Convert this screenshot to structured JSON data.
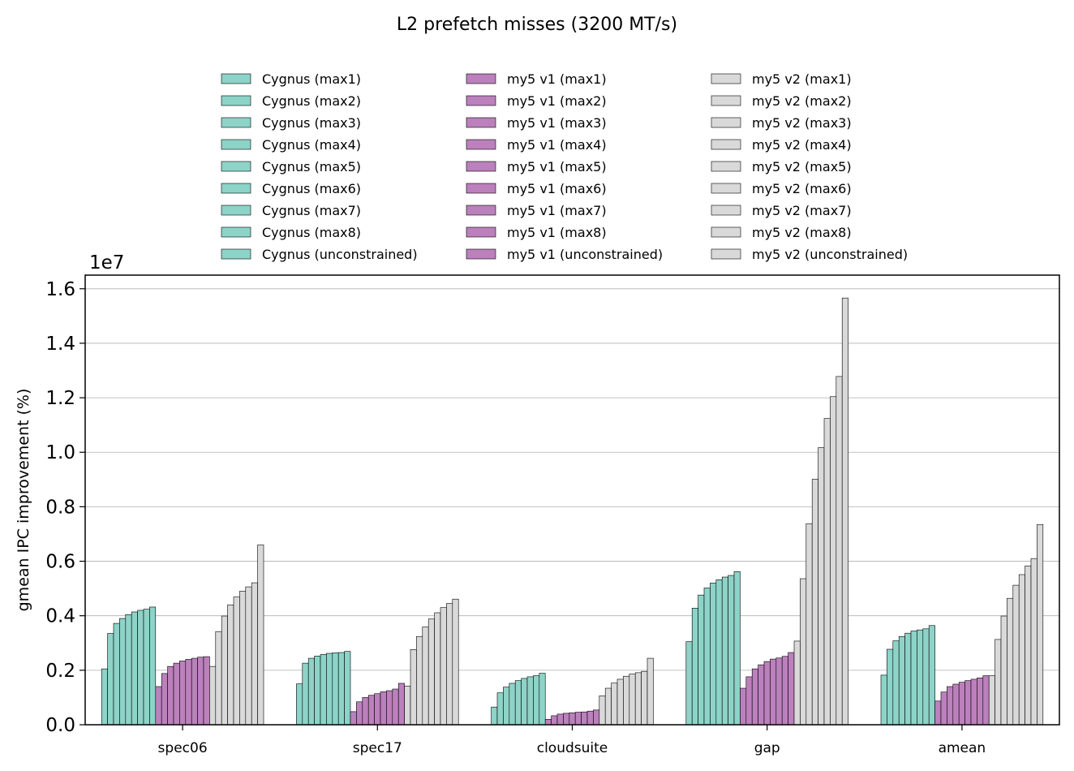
{
  "chart_data": {
    "type": "bar",
    "title": "L2 prefetch misses (3200 MT/s)",
    "xlabel": "",
    "ylabel": "gmean IPC improvement (%)",
    "scale_label": "1e7",
    "categories": [
      "spec06",
      "spec17",
      "cloudsuite",
      "gap",
      "amean"
    ],
    "ylim": [
      0,
      16500000
    ],
    "yticks": [
      0,
      2000000,
      4000000,
      6000000,
      8000000,
      10000000,
      12000000,
      14000000,
      16000000
    ],
    "ytick_labels": [
      "0.0",
      "0.2",
      "0.4",
      "0.6",
      "0.8",
      "1.0",
      "1.2",
      "1.4",
      "1.6"
    ],
    "grid": "y",
    "legend_placement": "top-center",
    "colors": {
      "Cygnus": "#8dd3c7",
      "my5 v1": "#bc80bd",
      "my5 v2": "#d9d9d9"
    },
    "series": [
      {
        "name": "Cygnus (max1)",
        "group": "Cygnus",
        "values": [
          2050000,
          1500000,
          650000,
          3050000,
          1820000
        ]
      },
      {
        "name": "Cygnus (max2)",
        "group": "Cygnus",
        "values": [
          3350000,
          2260000,
          1170000,
          4280000,
          2770000
        ]
      },
      {
        "name": "Cygnus (max3)",
        "group": "Cygnus",
        "values": [
          3720000,
          2440000,
          1380000,
          4760000,
          3080000
        ]
      },
      {
        "name": "Cygnus (max4)",
        "group": "Cygnus",
        "values": [
          3900000,
          2520000,
          1520000,
          5020000,
          3240000
        ]
      },
      {
        "name": "Cygnus (max5)",
        "group": "Cygnus",
        "values": [
          4040000,
          2580000,
          1620000,
          5200000,
          3360000
        ]
      },
      {
        "name": "Cygnus (max6)",
        "group": "Cygnus",
        "values": [
          4140000,
          2620000,
          1700000,
          5320000,
          3440000
        ]
      },
      {
        "name": "Cygnus (max7)",
        "group": "Cygnus",
        "values": [
          4200000,
          2640000,
          1760000,
          5420000,
          3480000
        ]
      },
      {
        "name": "Cygnus (max8)",
        "group": "Cygnus",
        "values": [
          4240000,
          2650000,
          1800000,
          5480000,
          3520000
        ]
      },
      {
        "name": "Cygnus (unconstrained)",
        "group": "Cygnus",
        "values": [
          4320000,
          2690000,
          1890000,
          5620000,
          3640000
        ]
      },
      {
        "name": "my5 v1 (max1)",
        "group": "my5 v1",
        "values": [
          1400000,
          480000,
          200000,
          1340000,
          870000
        ]
      },
      {
        "name": "my5 v1 (max2)",
        "group": "my5 v1",
        "values": [
          1880000,
          840000,
          330000,
          1760000,
          1200000
        ]
      },
      {
        "name": "my5 v1 (max3)",
        "group": "my5 v1",
        "values": [
          2140000,
          1000000,
          390000,
          2050000,
          1400000
        ]
      },
      {
        "name": "my5 v1 (max4)",
        "group": "my5 v1",
        "values": [
          2260000,
          1080000,
          420000,
          2200000,
          1490000
        ]
      },
      {
        "name": "my5 v1 (max5)",
        "group": "my5 v1",
        "values": [
          2340000,
          1140000,
          440000,
          2320000,
          1560000
        ]
      },
      {
        "name": "my5 v1 (max6)",
        "group": "my5 v1",
        "values": [
          2400000,
          1210000,
          460000,
          2410000,
          1620000
        ]
      },
      {
        "name": "my5 v1 (max7)",
        "group": "my5 v1",
        "values": [
          2440000,
          1250000,
          470000,
          2450000,
          1670000
        ]
      },
      {
        "name": "my5 v1 (max8)",
        "group": "my5 v1",
        "values": [
          2480000,
          1310000,
          500000,
          2510000,
          1720000
        ]
      },
      {
        "name": "my5 v1 (unconstrained)",
        "group": "my5 v1",
        "values": [
          2500000,
          1520000,
          540000,
          2650000,
          1800000
        ]
      },
      {
        "name": "my5 v2 (max1)",
        "group": "my5 v2",
        "values": [
          2140000,
          1420000,
          1060000,
          3070000,
          1800000
        ]
      },
      {
        "name": "my5 v2 (max2)",
        "group": "my5 v2",
        "values": [
          3420000,
          2760000,
          1340000,
          5360000,
          3130000
        ]
      },
      {
        "name": "my5 v2 (max3)",
        "group": "my5 v2",
        "values": [
          3990000,
          3240000,
          1530000,
          7380000,
          3990000
        ]
      },
      {
        "name": "my5 v2 (max4)",
        "group": "my5 v2",
        "values": [
          4400000,
          3590000,
          1670000,
          9010000,
          4640000
        ]
      },
      {
        "name": "my5 v2 (max5)",
        "group": "my5 v2",
        "values": [
          4690000,
          3880000,
          1780000,
          10170000,
          5120000
        ]
      },
      {
        "name": "my5 v2 (max6)",
        "group": "my5 v2",
        "values": [
          4900000,
          4110000,
          1860000,
          11240000,
          5510000
        ]
      },
      {
        "name": "my5 v2 (max7)",
        "group": "my5 v2",
        "values": [
          5060000,
          4300000,
          1910000,
          12040000,
          5830000
        ]
      },
      {
        "name": "my5 v2 (max8)",
        "group": "my5 v2",
        "values": [
          5210000,
          4450000,
          1960000,
          12780000,
          6100000
        ]
      },
      {
        "name": "my5 v2 (unconstrained)",
        "group": "my5 v2",
        "values": [
          6600000,
          4610000,
          2440000,
          15660000,
          7350000
        ]
      }
    ]
  }
}
